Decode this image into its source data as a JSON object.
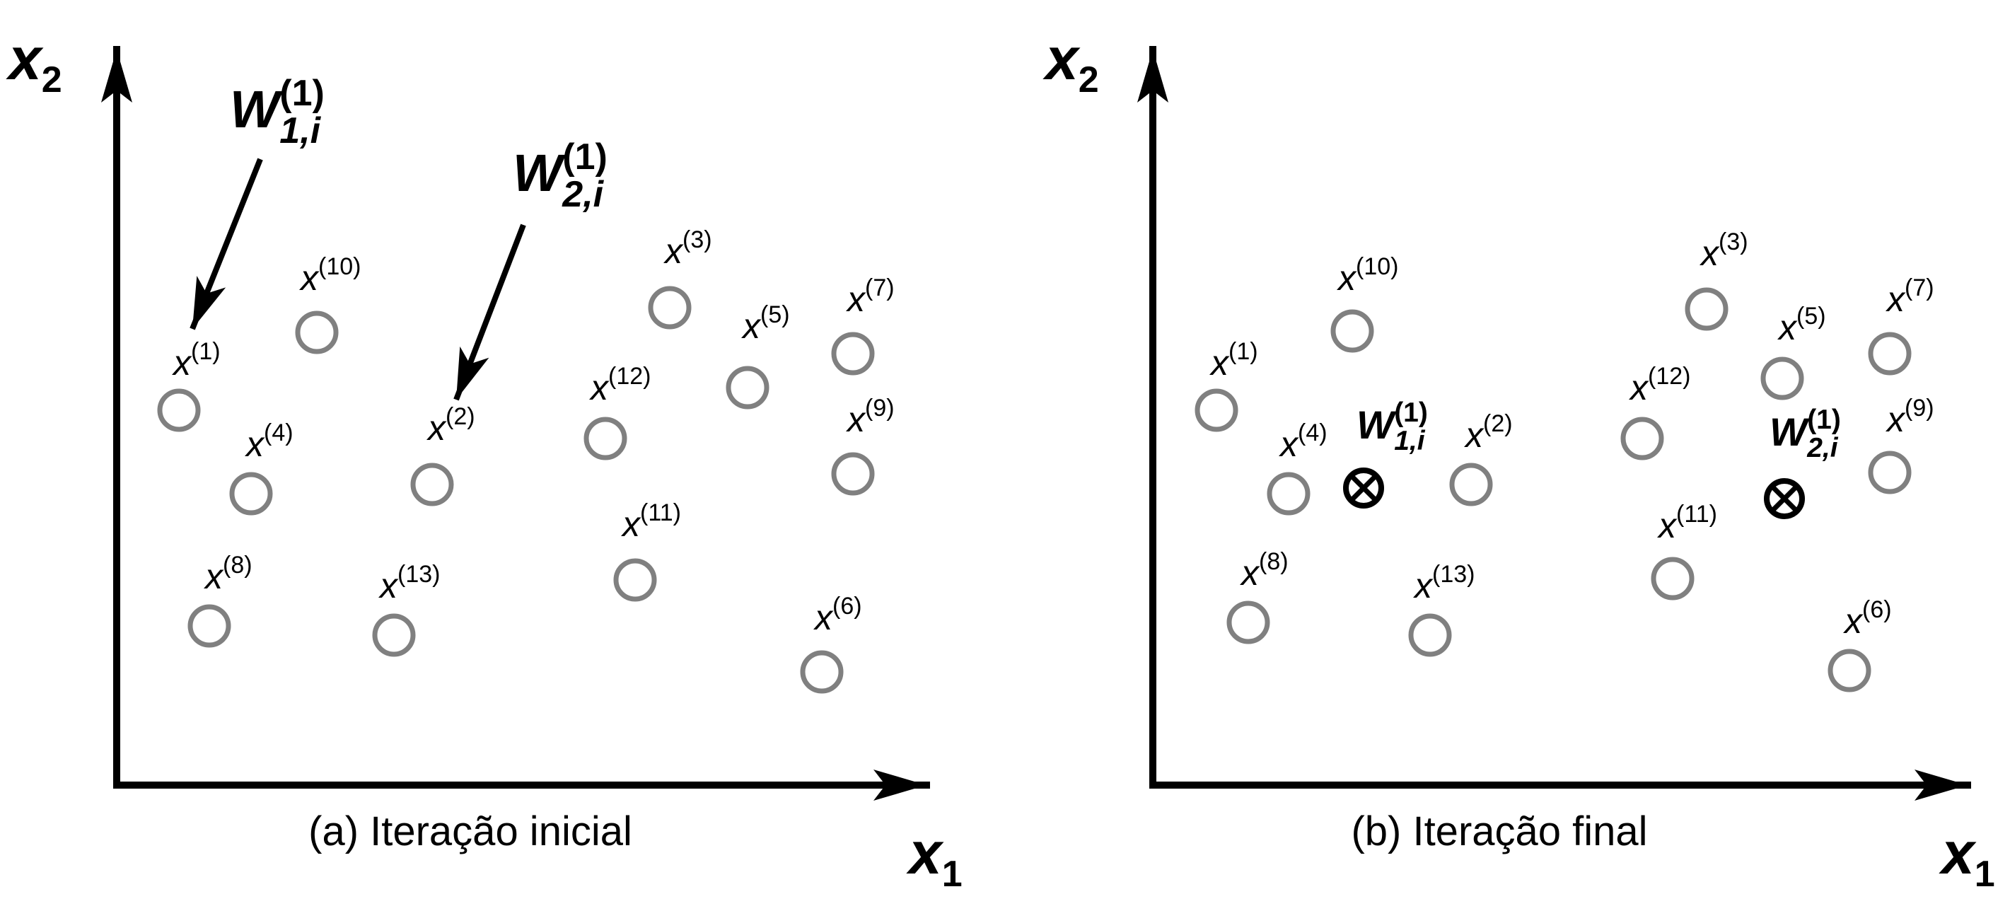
{
  "colors": {
    "axis": "#000000",
    "point": "#808080",
    "text": "#000000",
    "background": "#ffffff"
  },
  "panels": [
    {
      "id": "a",
      "caption": "(a) Iteração inicial",
      "x_axis_label": {
        "base": "x",
        "sub": "1"
      },
      "y_axis_label": {
        "base": "x",
        "sub": "2"
      },
      "points": [
        {
          "label_base": "x",
          "label_sup": "(1)"
        },
        {
          "label_base": "x",
          "label_sup": "(10)"
        },
        {
          "label_base": "x",
          "label_sup": "(4)"
        },
        {
          "label_base": "x",
          "label_sup": "(8)"
        },
        {
          "label_base": "x",
          "label_sup": "(2)"
        },
        {
          "label_base": "x",
          "label_sup": "(13)"
        },
        {
          "label_base": "x",
          "label_sup": "(3)"
        },
        {
          "label_base": "x",
          "label_sup": "(12)"
        },
        {
          "label_base": "x",
          "label_sup": "(5)"
        },
        {
          "label_base": "x",
          "label_sup": "(11)"
        },
        {
          "label_base": "x",
          "label_sup": "(7)"
        },
        {
          "label_base": "x",
          "label_sup": "(9)"
        },
        {
          "label_base": "x",
          "label_sup": "(6)"
        }
      ],
      "weights": [
        {
          "label_base": "W",
          "label_sup": "(1)",
          "label_sub": "1,i",
          "marker": "arrow"
        },
        {
          "label_base": "W",
          "label_sup": "(1)",
          "label_sub": "2,i",
          "marker": "arrow"
        }
      ]
    },
    {
      "id": "b",
      "caption": "(b) Iteração final",
      "x_axis_label": {
        "base": "x",
        "sub": "1"
      },
      "y_axis_label": {
        "base": "x",
        "sub": "2"
      },
      "points": [
        {
          "label_base": "x",
          "label_sup": "(1)"
        },
        {
          "label_base": "x",
          "label_sup": "(10)"
        },
        {
          "label_base": "x",
          "label_sup": "(4)"
        },
        {
          "label_base": "x",
          "label_sup": "(8)"
        },
        {
          "label_base": "x",
          "label_sup": "(2)"
        },
        {
          "label_base": "x",
          "label_sup": "(13)"
        },
        {
          "label_base": "x",
          "label_sup": "(3)"
        },
        {
          "label_base": "x",
          "label_sup": "(12)"
        },
        {
          "label_base": "x",
          "label_sup": "(5)"
        },
        {
          "label_base": "x",
          "label_sup": "(11)"
        },
        {
          "label_base": "x",
          "label_sup": "(7)"
        },
        {
          "label_base": "x",
          "label_sup": "(9)"
        },
        {
          "label_base": "x",
          "label_sup": "(6)"
        }
      ],
      "weights": [
        {
          "label_base": "W",
          "label_sup": "(1)",
          "label_sub": "1,i",
          "marker": "otimes"
        },
        {
          "label_base": "W",
          "label_sup": "(1)",
          "label_sub": "2,i",
          "marker": "otimes"
        }
      ]
    }
  ]
}
